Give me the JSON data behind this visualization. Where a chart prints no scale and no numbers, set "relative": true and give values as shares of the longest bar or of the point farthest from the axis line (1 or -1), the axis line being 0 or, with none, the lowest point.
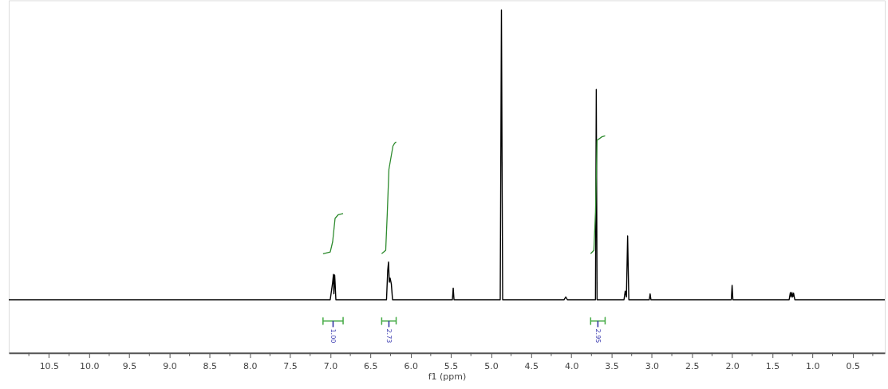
{
  "chart_data": {
    "type": "line",
    "xlabel": "f1 (ppm)",
    "relative": true,
    "grid": false,
    "tick_labels": "x",
    "line_style": "solid",
    "marker": "none",
    "xlim": [
      11.0,
      0.1
    ],
    "xticks": [
      {
        "value": 10.75,
        "label": null
      },
      {
        "value": 10.5,
        "label": "10.5"
      },
      {
        "value": 10.25,
        "label": null
      },
      {
        "value": 10.0,
        "label": "10.0"
      },
      {
        "value": 9.75,
        "label": null
      },
      {
        "value": 9.5,
        "label": "9.5"
      },
      {
        "value": 9.25,
        "label": null
      },
      {
        "value": 9.0,
        "label": "9.0"
      },
      {
        "value": 8.75,
        "label": null
      },
      {
        "value": 8.5,
        "label": "8.5"
      },
      {
        "value": 8.25,
        "label": null
      },
      {
        "value": 8.0,
        "label": "8.0"
      },
      {
        "value": 7.75,
        "label": null
      },
      {
        "value": 7.5,
        "label": "7.5"
      },
      {
        "value": 7.25,
        "label": null
      },
      {
        "value": 7.0,
        "label": "7.0"
      },
      {
        "value": 6.75,
        "label": null
      },
      {
        "value": 6.5,
        "label": "6.5"
      },
      {
        "value": 6.25,
        "label": null
      },
      {
        "value": 6.0,
        "label": "6.0"
      },
      {
        "value": 5.75,
        "label": null
      },
      {
        "value": 5.5,
        "label": "5.5"
      },
      {
        "value": 5.25,
        "label": null
      },
      {
        "value": 5.0,
        "label": "5.0"
      },
      {
        "value": 4.75,
        "label": null
      },
      {
        "value": 4.5,
        "label": "4.5"
      },
      {
        "value": 4.25,
        "label": null
      },
      {
        "value": 4.0,
        "label": "4.0"
      },
      {
        "value": 3.75,
        "label": null
      },
      {
        "value": 3.5,
        "label": "3.5"
      },
      {
        "value": 3.25,
        "label": null
      },
      {
        "value": 3.0,
        "label": "3.0"
      },
      {
        "value": 2.75,
        "label": null
      },
      {
        "value": 2.5,
        "label": "2.5"
      },
      {
        "value": 2.25,
        "label": null
      },
      {
        "value": 2.0,
        "label": "2.0"
      },
      {
        "value": 1.75,
        "label": null
      },
      {
        "value": 1.5,
        "label": "1.5"
      },
      {
        "value": 1.25,
        "label": null
      },
      {
        "value": 1.0,
        "label": "1.0"
      },
      {
        "value": 0.75,
        "label": null
      },
      {
        "value": 0.5,
        "label": "0.5"
      },
      {
        "value": 0.25,
        "label": null
      }
    ],
    "series": [
      {
        "color": "#000000",
        "x": [
          11.0,
          7.0,
          6.97,
          6.96,
          6.955,
          6.945,
          6.94,
          6.93,
          6.3,
          6.285,
          6.275,
          6.265,
          6.255,
          6.24,
          6.225,
          5.48,
          5.47,
          5.46,
          4.885,
          4.87,
          4.855,
          4.09,
          4.07,
          4.05,
          3.7,
          3.69,
          3.68,
          3.345,
          3.33,
          3.315,
          3.3,
          3.285,
          3.03,
          3.02,
          3.01,
          2.01,
          2.0,
          1.99,
          1.29,
          1.275,
          1.265,
          1.255,
          1.245,
          1.235,
          1.22,
          0.1
        ],
        "values": [
          0.155,
          0.155,
          0.206,
          0.229,
          0.172,
          0.227,
          0.206,
          0.155,
          0.155,
          0.24,
          0.265,
          0.206,
          0.218,
          0.201,
          0.155,
          0.155,
          0.189,
          0.155,
          0.155,
          1,
          0.155,
          0.155,
          0.163,
          0.155,
          0.155,
          0.768,
          0.155,
          0.155,
          0.18,
          0.163,
          0.341,
          0.155,
          0.155,
          0.172,
          0.155,
          0.155,
          0.197,
          0.155,
          0.155,
          0.176,
          0.163,
          0.176,
          0.163,
          0.174,
          0.155,
          0.155
        ]
      },
      {
        "color": "#2e8b2e",
        "x": [
          7.09,
          7.0,
          6.97,
          6.94,
          6.9,
          6.84
        ],
        "values": [
          0.289,
          0.294,
          0.324,
          0.392,
          0.403,
          0.406
        ]
      },
      {
        "color": "#2e8b2e",
        "x": [
          6.36,
          6.31,
          6.29,
          6.27,
          6.22,
          6.2,
          6.18
        ],
        "values": [
          0.289,
          0.299,
          0.409,
          0.535,
          0.603,
          0.611,
          0.615
        ]
      },
      {
        "color": "#2e8b2e",
        "x": [
          3.76,
          3.72,
          3.7,
          3.68,
          3.62,
          3.58
        ],
        "values": [
          0.289,
          0.299,
          0.409,
          0.62,
          0.63,
          0.633
        ]
      }
    ],
    "annotations": [
      "1.00",
      "2.73",
      "2.95"
    ]
  }
}
